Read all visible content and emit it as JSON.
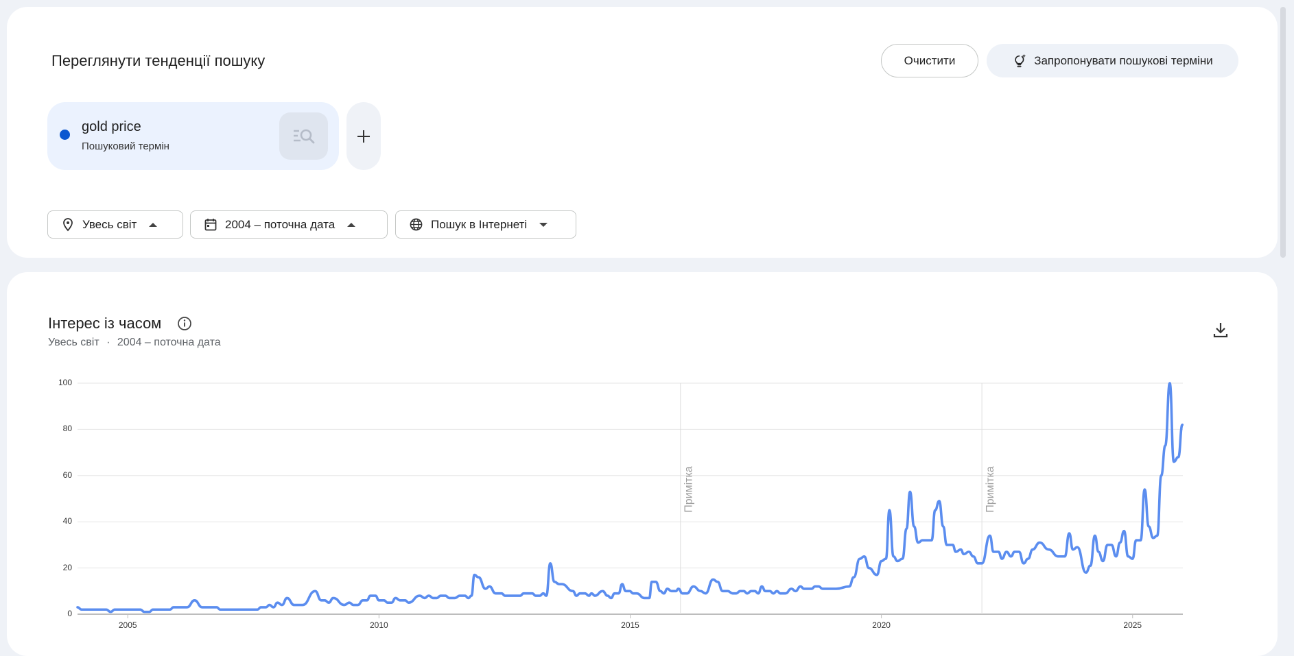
{
  "explore": {
    "title": "Переглянути тенденції пошуку",
    "clear_label": "Очистити",
    "suggest_label": "Запропонувати пошукові терміни",
    "term": {
      "name": "gold price",
      "type": "Пошуковий термін",
      "color": "#0b57d0"
    },
    "add_icon": "plus-icon",
    "filters": [
      {
        "label": "Увесь світ",
        "icon": "location-pin-icon",
        "caret": "up"
      },
      {
        "label": "2004 – поточна дата",
        "icon": "calendar-icon",
        "caret": "up"
      },
      {
        "label": "Пошук в Інтернеті",
        "icon": "globe-icon",
        "caret": "down"
      }
    ]
  },
  "interest": {
    "title": "Інтерес із часом",
    "subtitle_region": "Увесь світ",
    "subtitle_sep": "·",
    "subtitle_period": "2004 – поточна дата"
  },
  "chart_data": {
    "type": "line",
    "title": "",
    "xlabel": "",
    "ylabel": "",
    "xlim": [
      2004,
      2026
    ],
    "ylim": [
      0,
      100
    ],
    "y_ticks": [
      "0",
      "20",
      "40",
      "60",
      "80",
      "100"
    ],
    "x_ticks": [
      "2005",
      "2010",
      "2015",
      "2020",
      "2025"
    ],
    "grid": true,
    "line_color": "#5b8def",
    "annotations": [
      {
        "x": 2016.0,
        "label": "Примітка"
      },
      {
        "x": 2022.0,
        "label": "Примітка"
      }
    ],
    "series": [
      {
        "name": "gold price",
        "points": [
          [
            2004.0,
            3
          ],
          [
            2004.08,
            2
          ],
          [
            2004.57,
            2
          ],
          [
            2004.66,
            1
          ],
          [
            2004.74,
            2
          ],
          [
            2005.25,
            2
          ],
          [
            2005.33,
            1
          ],
          [
            2005.43,
            1
          ],
          [
            2005.5,
            2
          ],
          [
            2005.84,
            2
          ],
          [
            2005.91,
            3
          ],
          [
            2006.18,
            3
          ],
          [
            2006.33,
            6
          ],
          [
            2006.48,
            3
          ],
          [
            2006.77,
            3
          ],
          [
            2006.84,
            2
          ],
          [
            2007.58,
            2
          ],
          [
            2007.65,
            3
          ],
          [
            2007.75,
            3
          ],
          [
            2007.82,
            4
          ],
          [
            2007.9,
            3
          ],
          [
            2007.98,
            5
          ],
          [
            2008.07,
            4
          ],
          [
            2008.17,
            7
          ],
          [
            2008.31,
            4
          ],
          [
            2008.48,
            4
          ],
          [
            2008.73,
            10
          ],
          [
            2008.85,
            6
          ],
          [
            2008.92,
            6
          ],
          [
            2009.0,
            5
          ],
          [
            2009.09,
            7
          ],
          [
            2009.31,
            4
          ],
          [
            2009.41,
            5
          ],
          [
            2009.49,
            4
          ],
          [
            2009.58,
            4
          ],
          [
            2009.68,
            6
          ],
          [
            2009.76,
            6
          ],
          [
            2009.83,
            8
          ],
          [
            2009.93,
            8
          ],
          [
            2010.0,
            6
          ],
          [
            2010.1,
            6
          ],
          [
            2010.17,
            5
          ],
          [
            2010.25,
            5
          ],
          [
            2010.33,
            7
          ],
          [
            2010.42,
            6
          ],
          [
            2010.52,
            6
          ],
          [
            2010.59,
            5
          ],
          [
            2010.81,
            8
          ],
          [
            2010.91,
            7
          ],
          [
            2010.99,
            8
          ],
          [
            2011.08,
            7
          ],
          [
            2011.15,
            7
          ],
          [
            2011.23,
            8
          ],
          [
            2011.32,
            8
          ],
          [
            2011.4,
            7
          ],
          [
            2011.51,
            7
          ],
          [
            2011.61,
            8
          ],
          [
            2011.71,
            8
          ],
          [
            2011.78,
            7
          ],
          [
            2011.84,
            8
          ],
          [
            2011.9,
            17
          ],
          [
            2011.98,
            16
          ],
          [
            2012.12,
            11
          ],
          [
            2012.2,
            12
          ],
          [
            2012.32,
            9
          ],
          [
            2012.44,
            9
          ],
          [
            2012.51,
            8
          ],
          [
            2012.81,
            8
          ],
          [
            2012.88,
            9
          ],
          [
            2013.05,
            9
          ],
          [
            2013.12,
            8
          ],
          [
            2013.2,
            8
          ],
          [
            2013.27,
            9
          ],
          [
            2013.33,
            8
          ],
          [
            2013.41,
            22
          ],
          [
            2013.49,
            14
          ],
          [
            2013.59,
            13
          ],
          [
            2013.64,
            13
          ],
          [
            2013.86,
            10
          ],
          [
            2013.93,
            8
          ],
          [
            2014.0,
            9
          ],
          [
            2014.1,
            9
          ],
          [
            2014.18,
            8
          ],
          [
            2014.23,
            9
          ],
          [
            2014.3,
            8
          ],
          [
            2014.45,
            10
          ],
          [
            2014.55,
            8
          ],
          [
            2014.62,
            7
          ],
          [
            2014.69,
            9
          ],
          [
            2014.77,
            9
          ],
          [
            2014.84,
            13
          ],
          [
            2014.91,
            10
          ],
          [
            2014.99,
            10
          ],
          [
            2015.06,
            9
          ],
          [
            2015.13,
            9
          ],
          [
            2015.28,
            7
          ],
          [
            2015.38,
            7
          ],
          [
            2015.43,
            14
          ],
          [
            2015.51,
            14
          ],
          [
            2015.6,
            10
          ],
          [
            2015.67,
            9
          ],
          [
            2015.74,
            11
          ],
          [
            2015.82,
            10
          ],
          [
            2015.91,
            10
          ],
          [
            2015.96,
            11
          ],
          [
            2016.04,
            9
          ],
          [
            2016.13,
            9
          ],
          [
            2016.26,
            12
          ],
          [
            2016.4,
            10
          ],
          [
            2016.5,
            9
          ],
          [
            2016.65,
            15
          ],
          [
            2016.74,
            14
          ],
          [
            2016.84,
            10
          ],
          [
            2016.94,
            10
          ],
          [
            2017.04,
            9
          ],
          [
            2017.11,
            9
          ],
          [
            2017.19,
            10
          ],
          [
            2017.26,
            10
          ],
          [
            2017.33,
            9
          ],
          [
            2017.41,
            10
          ],
          [
            2017.48,
            10
          ],
          [
            2017.55,
            9
          ],
          [
            2017.62,
            12
          ],
          [
            2017.69,
            10
          ],
          [
            2017.78,
            10
          ],
          [
            2017.85,
            9
          ],
          [
            2017.92,
            10
          ],
          [
            2017.99,
            9
          ],
          [
            2018.09,
            9
          ],
          [
            2018.21,
            11
          ],
          [
            2018.29,
            10
          ],
          [
            2018.39,
            12
          ],
          [
            2018.46,
            11
          ],
          [
            2018.61,
            11
          ],
          [
            2018.68,
            12
          ],
          [
            2018.75,
            12
          ],
          [
            2018.83,
            11
          ],
          [
            2018.9,
            11
          ],
          [
            2019.1,
            11
          ],
          [
            2019.36,
            12
          ],
          [
            2019.45,
            16
          ],
          [
            2019.57,
            24
          ],
          [
            2019.66,
            25
          ],
          [
            2019.75,
            20
          ],
          [
            2019.91,
            17
          ],
          [
            2020.0,
            23
          ],
          [
            2020.09,
            24
          ],
          [
            2020.16,
            45
          ],
          [
            2020.24,
            25
          ],
          [
            2020.32,
            23
          ],
          [
            2020.42,
            24
          ],
          [
            2020.5,
            37
          ],
          [
            2020.57,
            53
          ],
          [
            2020.65,
            38
          ],
          [
            2020.73,
            31
          ],
          [
            2020.82,
            32
          ],
          [
            2021.0,
            32
          ],
          [
            2021.07,
            45
          ],
          [
            2021.15,
            49
          ],
          [
            2021.23,
            38
          ],
          [
            2021.3,
            30
          ],
          [
            2021.42,
            30
          ],
          [
            2021.48,
            27
          ],
          [
            2021.58,
            28
          ],
          [
            2021.64,
            26
          ],
          [
            2021.74,
            27
          ],
          [
            2021.83,
            25
          ],
          [
            2021.92,
            22
          ],
          [
            2022.0,
            22
          ],
          [
            2022.16,
            34
          ],
          [
            2022.23,
            27
          ],
          [
            2022.33,
            27
          ],
          [
            2022.4,
            24
          ],
          [
            2022.49,
            27
          ],
          [
            2022.58,
            25
          ],
          [
            2022.65,
            27
          ],
          [
            2022.74,
            27
          ],
          [
            2022.83,
            22
          ],
          [
            2022.92,
            24
          ],
          [
            2023.01,
            28
          ],
          [
            2023.15,
            31
          ],
          [
            2023.33,
            28
          ],
          [
            2023.52,
            25
          ],
          [
            2023.65,
            25
          ],
          [
            2023.74,
            35
          ],
          [
            2023.81,
            28
          ],
          [
            2023.9,
            29
          ],
          [
            2024.07,
            18
          ],
          [
            2024.16,
            21
          ],
          [
            2024.25,
            34
          ],
          [
            2024.32,
            27
          ],
          [
            2024.41,
            23
          ],
          [
            2024.5,
            30
          ],
          [
            2024.58,
            30
          ],
          [
            2024.67,
            25
          ],
          [
            2024.75,
            31
          ],
          [
            2024.83,
            36
          ],
          [
            2024.91,
            25
          ],
          [
            2025.0,
            24
          ],
          [
            2025.07,
            32
          ],
          [
            2025.16,
            32
          ],
          [
            2025.24,
            54
          ],
          [
            2025.32,
            38
          ],
          [
            2025.41,
            33
          ],
          [
            2025.49,
            34
          ],
          [
            2025.57,
            60
          ],
          [
            2025.65,
            73
          ],
          [
            2025.74,
            100
          ],
          [
            2025.82,
            66
          ],
          [
            2025.91,
            68
          ],
          [
            2025.99,
            82
          ]
        ]
      }
    ]
  }
}
